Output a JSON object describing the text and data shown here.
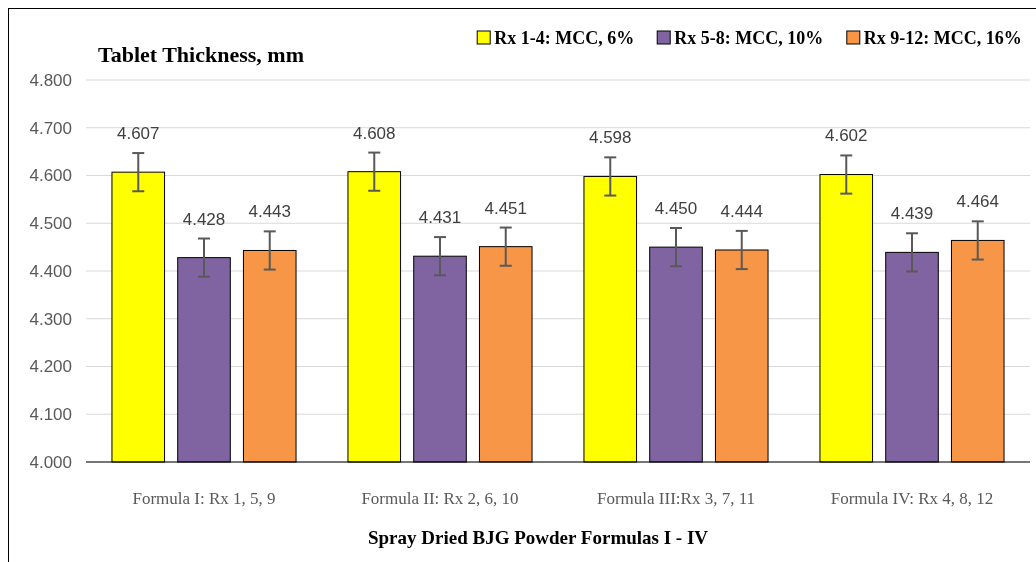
{
  "chart_data": {
    "type": "bar",
    "title": "Tablet Thickness, mm",
    "xlabel": "Spray Dried BJG Powder Formulas I - IV",
    "categories": [
      "Formula I: Rx 1, 5, 9",
      "Formula II: Rx 2, 6, 10",
      "Formula III:Rx 3, 7, 11",
      "Formula IV: Rx 4, 8, 12"
    ],
    "series": [
      {
        "name": "Rx 1-4: MCC, 6%",
        "color": "#ffff00",
        "values": [
          4.607,
          4.608,
          4.598,
          4.602
        ],
        "value_labels": [
          "4.607",
          "4.608",
          "4.598",
          "4.602"
        ],
        "errors": [
          0.04,
          0.04,
          0.04,
          0.04
        ]
      },
      {
        "name": "Rx 5-8: MCC, 10%",
        "color": "#8064a2",
        "values": [
          4.428,
          4.431,
          4.45,
          4.439
        ],
        "value_labels": [
          "4.428",
          "4.431",
          "4.450",
          "4.439"
        ],
        "errors": [
          0.04,
          0.04,
          0.04,
          0.04
        ]
      },
      {
        "name": "Rx 9-12: MCC, 16%",
        "color": "#f79646",
        "values": [
          4.443,
          4.451,
          4.444,
          4.464
        ],
        "value_labels": [
          "4.443",
          "4.451",
          "4.444",
          "4.464"
        ],
        "errors": [
          0.04,
          0.04,
          0.04,
          0.04
        ]
      }
    ],
    "ylim": [
      4.0,
      4.8
    ],
    "yticks": [
      {
        "value": 4.0,
        "label": "4.000"
      },
      {
        "value": 4.1,
        "label": "4.100"
      },
      {
        "value": 4.2,
        "label": "4.200"
      },
      {
        "value": 4.3,
        "label": "4.300"
      },
      {
        "value": 4.4,
        "label": "4.400"
      },
      {
        "value": 4.5,
        "label": "4.500"
      },
      {
        "value": 4.6,
        "label": "4.600"
      },
      {
        "value": 4.7,
        "label": "4.700"
      },
      {
        "value": 4.8,
        "label": "4.800"
      }
    ],
    "grid": "y",
    "legend": "top right"
  }
}
